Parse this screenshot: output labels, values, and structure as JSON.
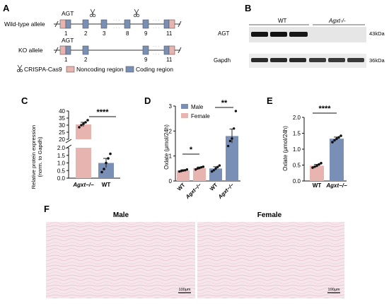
{
  "panel_letters": [
    "A",
    "B",
    "C",
    "D",
    "E",
    "F"
  ],
  "panelA": {
    "wt_label": "Wild-type allele",
    "ko_label": "KO allele",
    "agt": "AGT",
    "wt_exons": [
      "1",
      "2",
      "3",
      "8",
      "9",
      "11"
    ],
    "ko_exons": [
      "1",
      "2",
      "9",
      "11"
    ],
    "legend": {
      "crispr": "CRISPA-Cas9",
      "noncoding": "Noncoding region",
      "coding": "Coding region"
    },
    "colors": {
      "noncoding": "#e8b4b0",
      "coding": "#7a8fb5"
    }
  },
  "panelB": {
    "wt": "WT",
    "ko": "Agxt-/-",
    "rows": [
      {
        "label": "AGT",
        "size": "43kDa"
      },
      {
        "label": "Gapdh",
        "size": "36kDa"
      }
    ]
  },
  "panelF": {
    "male": "Male",
    "female": "Female",
    "scale": "100μm"
  },
  "chart_data": [
    {
      "type": "bar",
      "panel": "C",
      "categories": [
        "Agxt−/−",
        "WT"
      ],
      "values": [
        30.5,
        1.0
      ],
      "errors": [
        1.5,
        0.3
      ],
      "points": [
        [
          28.5,
          30,
          31,
          32,
          33.5
        ],
        [
          0.4,
          0.6,
          1.0,
          1.3,
          1.6
        ]
      ],
      "ylabel": "Relative protein expression\n(norm. to Gapdh)",
      "yticks_upper": [
        "20",
        "25",
        "30",
        "35",
        "40"
      ],
      "yticks_lower": [
        "0.0",
        "0.5",
        "1.0",
        "1.5",
        "2.0"
      ],
      "significance": "****",
      "colors": [
        "#e8b4b0",
        "#7a8fb5"
      ]
    },
    {
      "type": "bar",
      "panel": "D",
      "categories": [
        "WT",
        "Agxt−/−",
        "WT",
        "Agxt−/−"
      ],
      "groups": [
        "Female",
        "Female",
        "Male",
        "Male"
      ],
      "values": [
        0.42,
        0.52,
        0.5,
        1.8
      ],
      "errors": [
        0.03,
        0.04,
        0.07,
        0.28
      ],
      "points": [
        [
          0.38,
          0.4,
          0.42,
          0.43,
          0.46
        ],
        [
          0.46,
          0.5,
          0.52,
          0.55,
          0.57
        ],
        [
          0.38,
          0.43,
          0.5,
          0.56,
          0.62
        ],
        [
          1.4,
          1.6,
          1.7,
          2.1,
          2.8
        ]
      ],
      "ylabel": "Oxlate (μmol/24h)",
      "ylim": [
        0,
        3
      ],
      "yticks": [
        "0",
        "1",
        "2",
        "3"
      ],
      "legend": [
        "Male",
        "Female"
      ],
      "significance": [
        "*",
        "**"
      ],
      "colors": {
        "Male": "#7a8fb5",
        "Female": "#e8b4b0"
      }
    },
    {
      "type": "bar",
      "panel": "E",
      "categories": [
        "WT",
        "Agxt−/−"
      ],
      "values": [
        0.48,
        1.33
      ],
      "errors": [
        0.04,
        0.05
      ],
      "points": [
        [
          0.42,
          0.45,
          0.48,
          0.52,
          0.56
        ],
        [
          1.22,
          1.28,
          1.33,
          1.37,
          1.42
        ]
      ],
      "ylabel": "Oxlate (μmol/24h)",
      "ylim": [
        0,
        2.0
      ],
      "yticks": [
        "0.0",
        "0.5",
        "1.0",
        "1.5",
        "2.0"
      ],
      "significance": "****",
      "colors": [
        "#e8b4b0",
        "#7a8fb5"
      ]
    }
  ]
}
